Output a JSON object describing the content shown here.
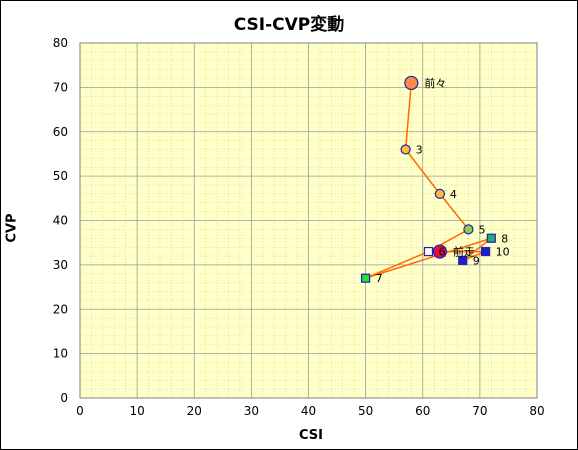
{
  "chart_data": {
    "type": "scatter",
    "title": "CSI-CVP変動",
    "xlabel": "CSI",
    "ylabel": "CVP",
    "xlim": [
      0,
      80
    ],
    "ylim": [
      0,
      80
    ],
    "xticks": [
      "0",
      "10",
      "20",
      "30",
      "40",
      "50",
      "60",
      "70",
      "80"
    ],
    "yticks": [
      "0",
      "10",
      "20",
      "30",
      "40",
      "50",
      "60",
      "70",
      "80"
    ],
    "grid": true,
    "plot_background": "#ffffc8",
    "line_color": "#ff6a00",
    "points": [
      {
        "label": "前々",
        "x": 58,
        "y": 71,
        "marker": "circle",
        "fill": "#ff8c40",
        "stroke": "#2020c0",
        "size": "large"
      },
      {
        "label": "3",
        "x": 57,
        "y": 56,
        "marker": "circle",
        "fill": "#ffc030",
        "stroke": "#2020c0",
        "size": "small"
      },
      {
        "label": "4",
        "x": 63,
        "y": 46,
        "marker": "circle",
        "fill": "#ffc030",
        "stroke": "#2020c0",
        "size": "small"
      },
      {
        "label": "5",
        "x": 68,
        "y": 38,
        "marker": "circle",
        "fill": "#90d040",
        "stroke": "#2020c0",
        "size": "small"
      },
      {
        "label": "6",
        "x": 61,
        "y": 33,
        "marker": "square",
        "fill": "#ffffff",
        "stroke": "#2020c0",
        "size": "small"
      },
      {
        "label": "7",
        "x": 50,
        "y": 27,
        "marker": "square",
        "fill": "#30e030",
        "stroke": "#2020c0",
        "size": "small"
      },
      {
        "label": "8",
        "x": 72,
        "y": 36,
        "marker": "square",
        "fill": "#20b060",
        "stroke": "#2020c0",
        "size": "small"
      },
      {
        "label": "9",
        "x": 67,
        "y": 31,
        "marker": "square",
        "fill": "#2020c0",
        "stroke": "#2020c0",
        "size": "small"
      },
      {
        "label": "10",
        "x": 71,
        "y": 33,
        "marker": "square",
        "fill": "#2020c0",
        "stroke": "#2020c0",
        "size": "small"
      },
      {
        "label": "前走",
        "x": 63,
        "y": 33,
        "marker": "circle",
        "fill": "#e01040",
        "stroke": "#2020c0",
        "size": "large"
      }
    ]
  }
}
